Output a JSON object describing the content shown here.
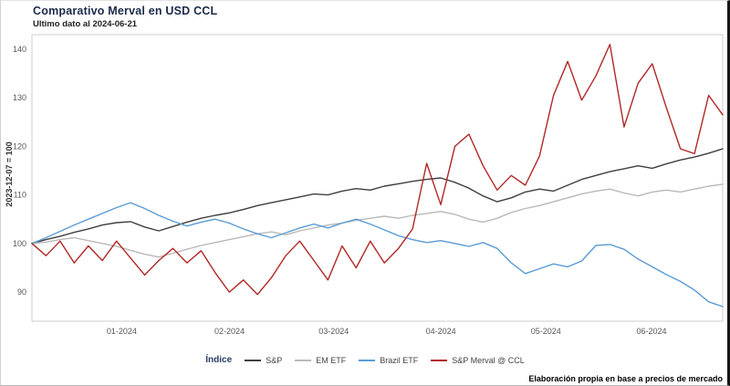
{
  "chart_data": {
    "type": "line",
    "title": "Comparativo Merval en USD CCL",
    "subtitle": "Ultimo dato al 2024-06-21",
    "ylabel": "2023-12-07 = 100",
    "legend_title": "Índice",
    "ylim": [
      84,
      143
    ],
    "yticks": [
      90,
      100,
      110,
      120,
      130,
      140
    ],
    "xticks": [
      {
        "label": "01-2024",
        "pos": 0.13
      },
      {
        "label": "02-2024",
        "pos": 0.286
      },
      {
        "label": "03-2024",
        "pos": 0.437
      },
      {
        "label": "04-2024",
        "pos": 0.592
      },
      {
        "label": "05-2024",
        "pos": 0.744
      },
      {
        "label": "06-2024",
        "pos": 0.897
      }
    ],
    "x_range": [
      "2023-12-07",
      "2024-06-21"
    ],
    "grid": false,
    "legend_position": "bottom-center",
    "series": [
      {
        "name": "S&P",
        "color": "#3f3f3f",
        "values": [
          100,
          100.8,
          101.5,
          102.3,
          103.0,
          103.8,
          104.3,
          104.5,
          103.4,
          102.6,
          103.5,
          104.4,
          105.2,
          105.8,
          106.3,
          107.0,
          107.8,
          108.4,
          109.0,
          109.6,
          110.2,
          110.0,
          110.8,
          111.3,
          111.0,
          111.8,
          112.3,
          112.8,
          113.2,
          113.5,
          112.6,
          111.4,
          109.8,
          108.6,
          109.4,
          110.6,
          111.2,
          110.8,
          112.0,
          113.2,
          114.0,
          114.8,
          115.4,
          116.0,
          115.5,
          116.4,
          117.2,
          117.8,
          118.6,
          119.5
        ]
      },
      {
        "name": "EM ETF",
        "color": "#b9b9b9",
        "values": [
          100,
          100.3,
          100.8,
          101.2,
          100.6,
          100.0,
          99.4,
          98.6,
          97.8,
          97.2,
          98.0,
          98.8,
          99.6,
          100.2,
          100.8,
          101.4,
          102.0,
          102.4,
          101.8,
          102.6,
          103.2,
          103.8,
          104.2,
          104.8,
          105.2,
          105.6,
          105.2,
          105.8,
          106.2,
          106.6,
          106.0,
          105.0,
          104.4,
          105.2,
          106.4,
          107.2,
          107.8,
          108.6,
          109.4,
          110.2,
          110.8,
          111.2,
          110.4,
          109.8,
          110.6,
          111.0,
          110.6,
          111.2,
          111.8,
          112.2
        ]
      },
      {
        "name": "Brazil ETF",
        "color": "#5b9bd5",
        "values": [
          100,
          101.2,
          102.5,
          103.8,
          105.0,
          106.2,
          107.4,
          108.4,
          107.2,
          105.8,
          104.6,
          103.6,
          104.4,
          105.0,
          104.2,
          103.0,
          102.0,
          101.2,
          102.2,
          103.2,
          104.0,
          103.2,
          104.2,
          105.0,
          104.0,
          102.8,
          101.6,
          100.8,
          100.2,
          100.6,
          100.0,
          99.4,
          100.2,
          99.0,
          96.0,
          93.8,
          94.8,
          95.8,
          95.2,
          96.4,
          99.6,
          99.8,
          98.8,
          96.8,
          95.2,
          93.6,
          92.2,
          90.4,
          88.0,
          87.0
        ]
      },
      {
        "name": "S&P Merval @ CCL",
        "color": "#b22727",
        "values": [
          100,
          97.5,
          100.5,
          96.0,
          99.5,
          96.5,
          100.5,
          97.0,
          93.5,
          96.5,
          99.0,
          96.0,
          98.5,
          94.0,
          90.0,
          92.5,
          89.5,
          93.0,
          97.5,
          100.5,
          96.5,
          92.5,
          99.5,
          95.0,
          100.5,
          96.0,
          99.0,
          103.0,
          116.5,
          108.0,
          120.0,
          122.5,
          116.0,
          111.0,
          114.0,
          112.0,
          118.0,
          130.5,
          137.5,
          129.5,
          134.5,
          141.0,
          124.0,
          133.0,
          137.0,
          128.0,
          119.5,
          118.5,
          130.5,
          126.5
        ]
      }
    ],
    "source_note": "Elaboración propia en base a precios de mercado"
  }
}
